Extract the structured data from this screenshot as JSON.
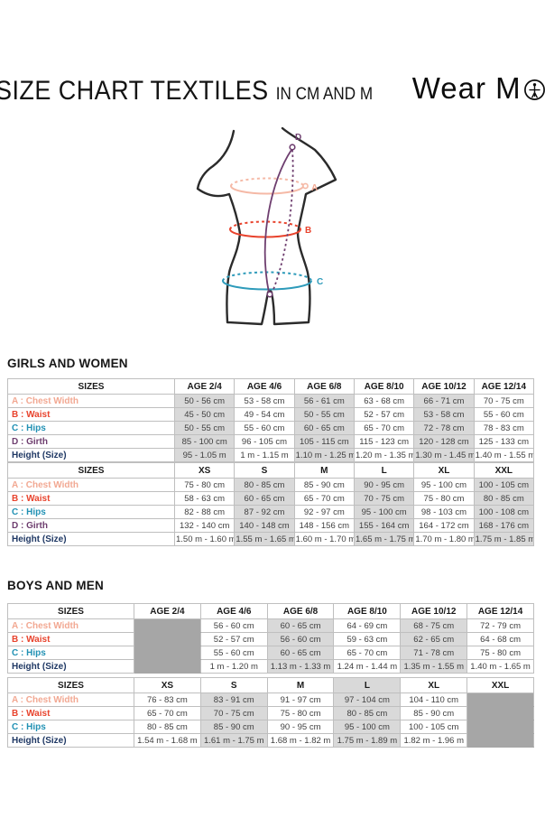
{
  "header": {
    "title": "SIZE CHART TEXTILES",
    "subtitle": "IN CM AND M",
    "brand": "Wear Moi",
    "brand_prefix": "Wear M",
    "brand_suffix": "i"
  },
  "figure": {
    "labels": [
      {
        "id": "A",
        "color": "#f2a892"
      },
      {
        "id": "B",
        "color": "#e8432d"
      },
      {
        "id": "C",
        "color": "#2e9bba"
      },
      {
        "id": "D",
        "color": "#6e3e6f"
      }
    ]
  },
  "colors": {
    "chest": "#f5b9a6",
    "waist": "#e8432d",
    "hips": "#2e9bba",
    "girth": "#6e3e6f",
    "height_label": "#1f3864",
    "light_shade": "#d9d9d9",
    "dark_block": "#a6a6a6"
  },
  "sections": [
    {
      "heading": "GIRLS AND WOMEN",
      "tables": [
        {
          "corner": "SIZES",
          "columns": [
            "AGE 2/4",
            "AGE 4/6",
            "AGE 6/8",
            "AGE 8/10",
            "AGE 10/12",
            "AGE 12/14"
          ],
          "shaded_columns": [
            0,
            2,
            4
          ],
          "header_shaded": [],
          "blocked_column": null,
          "rows": [
            {
              "label": "A : Chest Width",
              "color": "#f2a892",
              "values": [
                "50 - 56 cm",
                "53 - 58 cm",
                "56 - 61 cm",
                "63 - 68 cm",
                "66 - 71 cm",
                "70 - 75 cm"
              ]
            },
            {
              "label": "B : Waist",
              "color": "#e8432d",
              "values": [
                "45 - 50 cm",
                "49 - 54 cm",
                "50 - 55 cm",
                "52 - 57 cm",
                "53 - 58 cm",
                "55 - 60 cm"
              ]
            },
            {
              "label": "C : Hips",
              "color": "#2191b4",
              "values": [
                "50 - 55 cm",
                "55 - 60 cm",
                "60 - 65 cm",
                "65 - 70 cm",
                "72 - 78 cm",
                "78 - 83 cm"
              ]
            },
            {
              "label": "D : Girth",
              "color": "#6e3e6f",
              "values": [
                "85 - 100 cm",
                "96 - 105 cm",
                "105 - 115 cm",
                "115 - 123 cm",
                "120 - 128 cm",
                "125 - 133 cm"
              ]
            },
            {
              "label": "Height (Size)",
              "color": "#1f3864",
              "values": [
                "95 - 1.05 m",
                "1 m - 1.15 m",
                "1.10 m - 1.25 m",
                "1.20 m - 1.35 m",
                "1.30 m - 1.45 m",
                "1.40 m - 1.55 m"
              ]
            }
          ]
        },
        {
          "corner": "SIZES",
          "columns": [
            "XS",
            "S",
            "M",
            "L",
            "XL",
            "XXL"
          ],
          "shaded_columns": [
            1,
            3,
            5
          ],
          "header_shaded": [],
          "blocked_column": null,
          "rows": [
            {
              "label": "A : Chest Width",
              "color": "#f2a892",
              "values": [
                "75 - 80 cm",
                "80 - 85 cm",
                "85 - 90 cm",
                "90 - 95 cm",
                "95 - 100 cm",
                "100 - 105 cm"
              ]
            },
            {
              "label": "B : Waist",
              "color": "#e8432d",
              "values": [
                "58 - 63 cm",
                "60 - 65 cm",
                "65 - 70 cm",
                "70 - 75 cm",
                "75 - 80 cm",
                "80 - 85 cm"
              ]
            },
            {
              "label": "C : Hips",
              "color": "#2191b4",
              "values": [
                "82 - 88 cm",
                "87 - 92 cm",
                "92 - 97 cm",
                "95 - 100 cm",
                "98 - 103 cm",
                "100 - 108 cm"
              ]
            },
            {
              "label": "D : Girth",
              "color": "#6e3e6f",
              "values": [
                "132 - 140 cm",
                "140 - 148 cm",
                "148 - 156 cm",
                "155 - 164 cm",
                "164 - 172 cm",
                "168 - 176 cm"
              ]
            },
            {
              "label": "Height (Size)",
              "color": "#1f3864",
              "values": [
                "1.50 m - 1.60 m",
                "1.55 m - 1.65 m",
                "1.60 m - 1.70 m",
                "1.65 m - 1.75 m",
                "1.70 m - 1.80 m",
                "1.75 m - 1.85 m"
              ]
            }
          ]
        }
      ]
    },
    {
      "heading": "BOYS AND MEN",
      "tables": [
        {
          "corner": "SIZES",
          "columns": [
            "AGE 2/4",
            "AGE 4/6",
            "AGE 6/8",
            "AGE 8/10",
            "AGE 10/12",
            "AGE 12/14"
          ],
          "shaded_columns": [
            2,
            4
          ],
          "header_shaded": [],
          "blocked_column": 0,
          "rows": [
            {
              "label": "A : Chest Width",
              "color": "#f2a892",
              "values": [
                "",
                "56 - 60 cm",
                "60 - 65 cm",
                "64 - 69 cm",
                "68 - 75 cm",
                "72 - 79 cm"
              ]
            },
            {
              "label": "B : Waist",
              "color": "#e8432d",
              "values": [
                "",
                "52 - 57 cm",
                "56 - 60 cm",
                "59 - 63 cm",
                "62 - 65 cm",
                "64 - 68 cm"
              ]
            },
            {
              "label": "C : Hips",
              "color": "#2191b4",
              "values": [
                "",
                "55 - 60 cm",
                "60 - 65 cm",
                "65 - 70 cm",
                "71 - 78 cm",
                "75 - 80 cm"
              ]
            },
            {
              "label": "Height (Size)",
              "color": "#1f3864",
              "values": [
                "",
                "1 m - 1.20 m",
                "1.13 m - 1.33 m",
                "1.24 m - 1.44 m",
                "1.35 m - 1.55 m",
                "1.40 m - 1.65 m"
              ]
            }
          ]
        },
        {
          "corner": "SIZES",
          "columns": [
            "XS",
            "S",
            "M",
            "L",
            "XL",
            "XXL"
          ],
          "shaded_columns": [
            1,
            3
          ],
          "header_shaded": [
            3
          ],
          "blocked_column": 5,
          "rows": [
            {
              "label": "A : Chest Width",
              "color": "#f2a892",
              "values": [
                "76 - 83 cm",
                "83 - 91 cm",
                "91 - 97 cm",
                "97 - 104 cm",
                "104 - 110 cm",
                ""
              ]
            },
            {
              "label": "B : Waist",
              "color": "#e8432d",
              "values": [
                "65 - 70 cm",
                "70 - 75 cm",
                "75 - 80 cm",
                "80 - 85 cm",
                "85 - 90 cm",
                ""
              ]
            },
            {
              "label": "C : Hips",
              "color": "#2191b4",
              "values": [
                "80 - 85 cm",
                "85 - 90 cm",
                "90 - 95 cm",
                "95 - 100 cm",
                "100 - 105 cm",
                ""
              ]
            },
            {
              "label": "Height (Size)",
              "color": "#1f3864",
              "values": [
                "1.54 m - 1.68 m",
                "1.61 m - 1.75 m",
                "1.68 m - 1.82 m",
                "1.75 m - 1.89 m",
                "1.82 m - 1.96 m",
                ""
              ]
            }
          ]
        }
      ]
    }
  ]
}
